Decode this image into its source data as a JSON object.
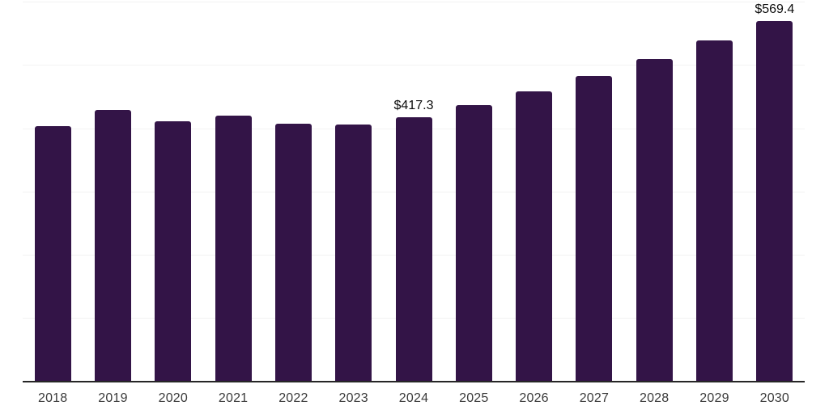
{
  "chart_data": {
    "type": "bar",
    "title": "",
    "xlabel": "",
    "ylabel": "",
    "categories": [
      "2018",
      "2019",
      "2020",
      "2021",
      "2022",
      "2023",
      "2024",
      "2025",
      "2026",
      "2027",
      "2028",
      "2029",
      "2030"
    ],
    "values": [
      403.3,
      429.1,
      410.5,
      420.2,
      406.7,
      405.4,
      417.3,
      436.0,
      458.0,
      482.2,
      509.0,
      538.4,
      569.4
    ],
    "labeled_points": [
      {
        "category": "2024",
        "label": "$417.3"
      },
      {
        "category": "2030",
        "label": "$569.4"
      }
    ],
    "ylim": [
      0,
      600
    ],
    "grid_step": 100,
    "grid": true,
    "legend": false,
    "y_tick_labels_visible": false,
    "colors": {
      "bar": "#331447",
      "axis_line": "#262626",
      "gridline": "#f2f2f2",
      "x_label": "#3a3a3a",
      "data_label": "#0d0d0d",
      "background": "#ffffff"
    }
  }
}
